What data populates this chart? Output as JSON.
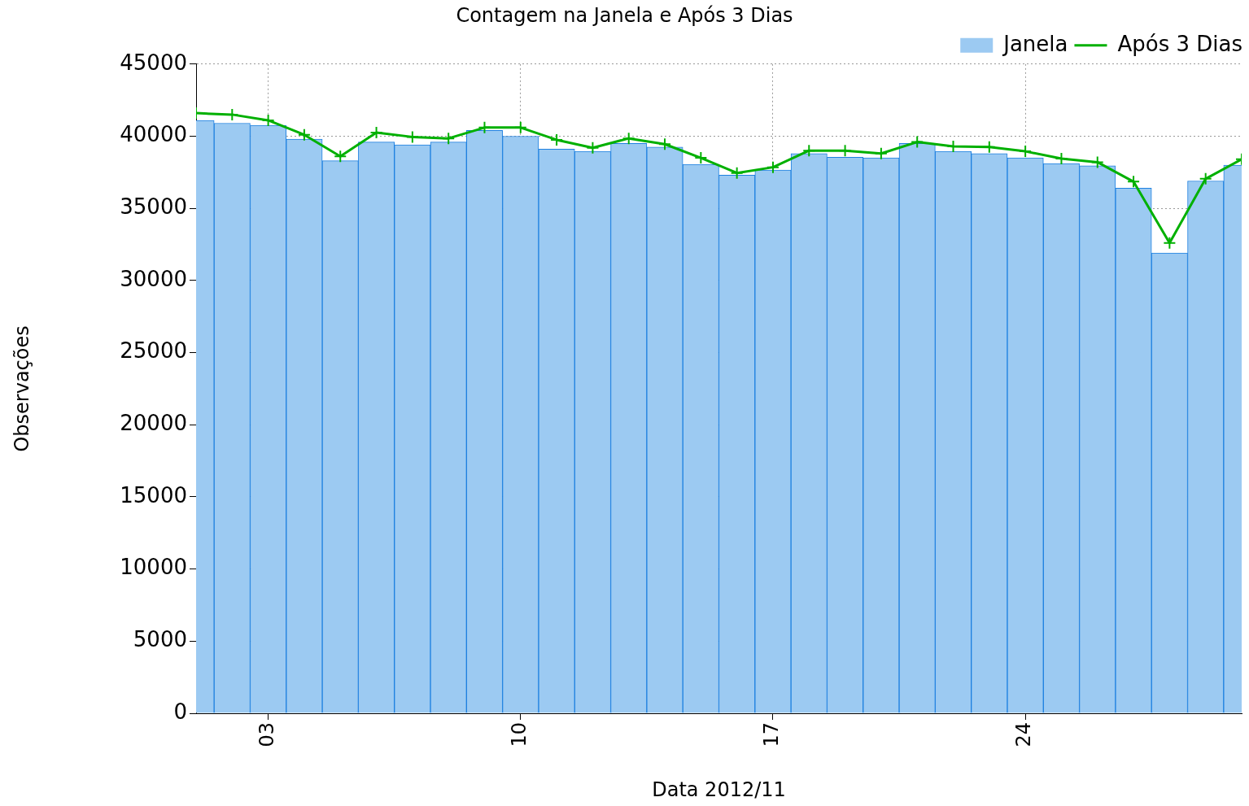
{
  "chart_data": {
    "type": "bar",
    "title": "Contagem na Janela e Após 3 Dias",
    "xlabel": "Data 2012/11",
    "ylabel": "Observações",
    "x": [
      "2012-11-01",
      "2012-11-02",
      "2012-11-03",
      "2012-11-04",
      "2012-11-05",
      "2012-11-06",
      "2012-11-07",
      "2012-11-08",
      "2012-11-09",
      "2012-11-10",
      "2012-11-11",
      "2012-11-12",
      "2012-11-13",
      "2012-11-14",
      "2012-11-15",
      "2012-11-16",
      "2012-11-17",
      "2012-11-18",
      "2012-11-19",
      "2012-11-20",
      "2012-11-21",
      "2012-11-22",
      "2012-11-23",
      "2012-11-24",
      "2012-11-25",
      "2012-11-26",
      "2012-11-27",
      "2012-11-28",
      "2012-11-29",
      "2012-11-30"
    ],
    "series": [
      {
        "name": "Janela",
        "color": "#9ccaf2",
        "values": [
          41100,
          40900,
          40750,
          39800,
          38300,
          39600,
          39400,
          39600,
          40400,
          40000,
          39100,
          38950,
          39500,
          39250,
          38050,
          37300,
          37650,
          38800,
          38550,
          38500,
          39500,
          38950,
          38800,
          38500,
          38100,
          37950,
          36400,
          31900,
          36900,
          38000
        ]
      },
      {
        "name": "Após 3 Dias",
        "type": "line",
        "color": "#00b000",
        "values": [
          41600,
          41500,
          41100,
          40100,
          38600,
          40250,
          39950,
          39850,
          40600,
          40600,
          39750,
          39200,
          39850,
          39450,
          38500,
          37450,
          37850,
          39000,
          39000,
          38800,
          39600,
          39300,
          39250,
          38950,
          38450,
          38200,
          36850,
          32600,
          37050,
          38400
        ]
      }
    ],
    "xlim": [
      "2012-11-01",
      "2012-11-30"
    ],
    "xticks": [
      {
        "value": "2012-11-03",
        "label": "03"
      },
      {
        "value": "2012-11-10",
        "label": "10"
      },
      {
        "value": "2012-11-17",
        "label": "17"
      },
      {
        "value": "2012-11-24",
        "label": "24"
      }
    ],
    "ylim": [
      0,
      45000
    ],
    "yticks": [
      0,
      5000,
      10000,
      15000,
      20000,
      25000,
      30000,
      35000,
      40000,
      45000
    ],
    "grid": true,
    "legend": "top right",
    "marker": "cross",
    "line_style": "solid"
  }
}
